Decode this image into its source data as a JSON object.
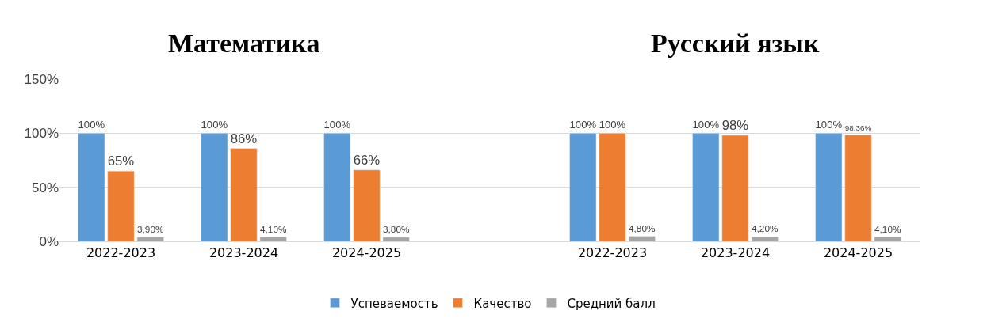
{
  "chart_data": {
    "type": "bar",
    "categories": [
      "2022-2023",
      "2023-2024",
      "2024-2025",
      null,
      "2022-2023",
      "2023-2024",
      "2024-2025"
    ],
    "series": [
      {
        "name": "Успеваемость",
        "color": "#5b9bd5",
        "values": [
          100,
          100,
          100,
          null,
          100,
          100,
          100
        ],
        "value_labels": [
          "100%",
          "100%",
          "100%",
          null,
          "100%",
          "100%",
          "100%"
        ]
      },
      {
        "name": "Качество",
        "color": "#ed7d31",
        "values": [
          65,
          86,
          66,
          null,
          100,
          98,
          98.36
        ],
        "value_labels": [
          "65%",
          "86%",
          "66%",
          null,
          "100%",
          "98%",
          "98,36%"
        ]
      },
      {
        "name": "Средний балл",
        "color": "#a5a5a5",
        "values": [
          3.9,
          4.1,
          3.8,
          null,
          4.8,
          4.2,
          4.1
        ],
        "value_labels": [
          "3,90%",
          "4,10%",
          "3,80%",
          null,
          "4,80%",
          "4,20%",
          "4,10%"
        ]
      }
    ],
    "annotations": [
      "Математика",
      "Русский язык"
    ],
    "ylim": [
      0,
      150
    ],
    "yticks": [
      {
        "value": 0,
        "label": "0%"
      },
      {
        "value": 50,
        "label": "50%"
      },
      {
        "value": 100,
        "label": "100%"
      },
      {
        "value": 150,
        "label": "150%"
      }
    ],
    "grid": "y",
    "legend": "bottom"
  }
}
